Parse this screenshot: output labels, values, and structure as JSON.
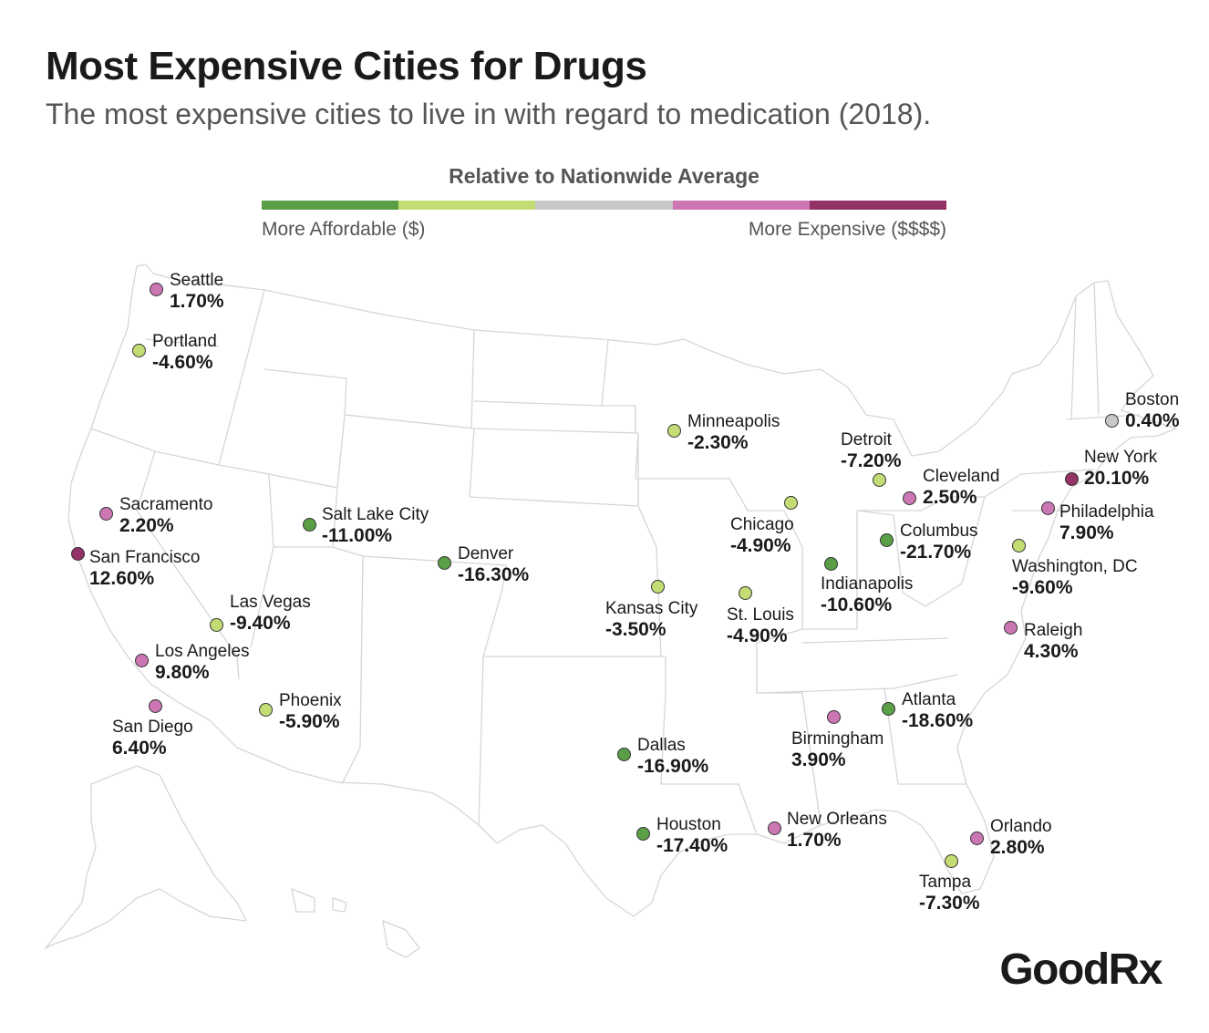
{
  "header": {
    "title": "Most Expensive Cities for Drugs",
    "subtitle": "The most expensive cities to live in with regard to medication (2018)."
  },
  "legend": {
    "title": "Relative to Nationwide Average",
    "left_label": "More Affordable ($)",
    "right_label": "More Expensive ($$$$)",
    "scale_colors": [
      "#5a9e46",
      "#c3dd74",
      "#c8c8c8",
      "#cc77b4",
      "#923265"
    ]
  },
  "colors": {
    "dark_green": "#5a9e46",
    "light_green": "#c3dd74",
    "gray": "#c8c8c8",
    "pink": "#cc77b4",
    "maroon": "#923265"
  },
  "cities": [
    {
      "name": "Seattle",
      "value": "1.70%",
      "color": "#cc77b4"
    },
    {
      "name": "Portland",
      "value": "-4.60%",
      "color": "#c3dd74"
    },
    {
      "name": "Sacramento",
      "value": "2.20%",
      "color": "#cc77b4"
    },
    {
      "name": "San Francisco",
      "value": "12.60%",
      "color": "#923265"
    },
    {
      "name": "Las Vegas",
      "value": "-9.40%",
      "color": "#c3dd74"
    },
    {
      "name": "Los Angeles",
      "value": "9.80%",
      "color": "#cc77b4"
    },
    {
      "name": "San Diego",
      "value": "6.40%",
      "color": "#cc77b4"
    },
    {
      "name": "Salt Lake City",
      "value": "-11.00%",
      "color": "#5a9e46"
    },
    {
      "name": "Phoenix",
      "value": "-5.90%",
      "color": "#c3dd74"
    },
    {
      "name": "Denver",
      "value": "-16.30%",
      "color": "#5a9e46"
    },
    {
      "name": "Minneapolis",
      "value": "-2.30%",
      "color": "#c3dd74"
    },
    {
      "name": "Kansas City",
      "value": "-3.50%",
      "color": "#c3dd74"
    },
    {
      "name": "Dallas",
      "value": "-16.90%",
      "color": "#5a9e46"
    },
    {
      "name": "Houston",
      "value": "-17.40%",
      "color": "#5a9e46"
    },
    {
      "name": "Chicago",
      "value": "-4.90%",
      "color": "#c3dd74"
    },
    {
      "name": "St. Louis",
      "value": "-4.90%",
      "color": "#c3dd74"
    },
    {
      "name": "Detroit",
      "value": "-7.20%",
      "color": "#c3dd74"
    },
    {
      "name": "Indianapolis",
      "value": "-10.60%",
      "color": "#5a9e46"
    },
    {
      "name": "Columbus",
      "value": "-21.70%",
      "color": "#5a9e46"
    },
    {
      "name": "Cleveland",
      "value": "2.50%",
      "color": "#cc77b4"
    },
    {
      "name": "Boston",
      "value": "0.40%",
      "color": "#c8c8c8"
    },
    {
      "name": "New York",
      "value": "20.10%",
      "color": "#923265"
    },
    {
      "name": "Philadelphia",
      "value": "7.90%",
      "color": "#cc77b4"
    },
    {
      "name": "Washington, DC",
      "value": "-9.60%",
      "color": "#c3dd74"
    },
    {
      "name": "Raleigh",
      "value": "4.30%",
      "color": "#cc77b4"
    },
    {
      "name": "Atlanta",
      "value": "-18.60%",
      "color": "#5a9e46"
    },
    {
      "name": "Birmingham",
      "value": "3.90%",
      "color": "#cc77b4"
    },
    {
      "name": "New Orleans",
      "value": "1.70%",
      "color": "#cc77b4"
    },
    {
      "name": "Orlando",
      "value": "2.80%",
      "color": "#cc77b4"
    },
    {
      "name": "Tampa",
      "value": "-7.30%",
      "color": "#c3dd74"
    }
  ],
  "logo": {
    "text": "GoodRx"
  }
}
